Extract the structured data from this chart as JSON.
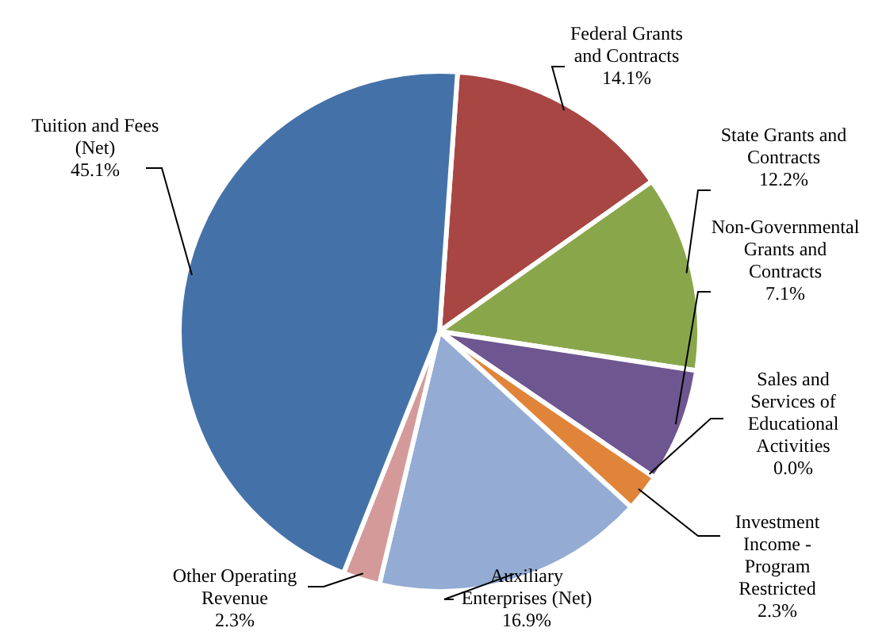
{
  "chart_data": {
    "type": "pie",
    "categories": [
      "Federal Grants and Contracts",
      "State Grants and Contracts",
      "Non-Governmental Grants and Contracts",
      "Sales and Services of Educational Activities",
      "Investment Income - Program Restricted",
      "Auxiliary Enterprises (Net)",
      "Other Operating Revenue",
      "Tuition and Fees (Net)"
    ],
    "values": [
      14.1,
      12.2,
      7.1,
      0.0,
      2.3,
      16.9,
      2.3,
      45.1
    ],
    "value_labels": [
      "14.1%",
      "12.2%",
      "7.1%",
      "0.0%",
      "2.3%",
      "16.9%",
      "2.3%",
      "45.1%"
    ],
    "colors": [
      "#a84644",
      "#8aa64b",
      "#6e5690",
      "#4bacc6",
      "#e0843a",
      "#94acd4",
      "#d49a9a",
      "#4472a8"
    ]
  }
}
